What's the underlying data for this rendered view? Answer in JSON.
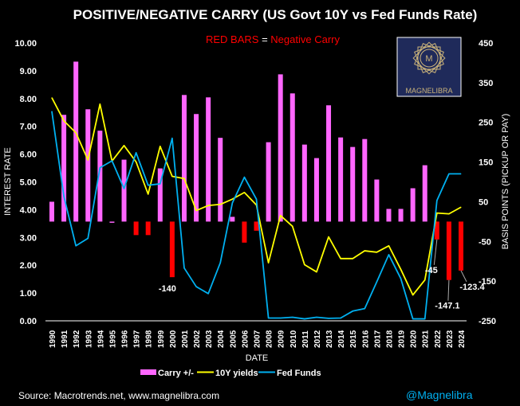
{
  "chart_data": {
    "type": "bar+line",
    "title": "POSITIVE/NEGATIVE CARRY (US Govt 10Y vs Fed Funds Rate)",
    "subtitle_red": "RED BARS",
    "subtitle_eq": " = ",
    "subtitle_neg": "Negative Carry",
    "xlabel": "DATE",
    "ylabel_left": "INTEREST RATE",
    "ylabel_right": "BASIS POINTS (PICKUP OR PAY)",
    "ylim_left": [
      0,
      10
    ],
    "ylim_right": [
      -250,
      450
    ],
    "left_ticks": [
      "0.00",
      "1.00",
      "2.00",
      "3.00",
      "4.00",
      "5.00",
      "6.00",
      "7.00",
      "8.00",
      "9.00",
      "10.00"
    ],
    "right_ticks": [
      "-250",
      "-150",
      "-50",
      "50",
      "150",
      "250",
      "350",
      "450"
    ],
    "categories": [
      "1990",
      "1991",
      "1992",
      "1993",
      "1994",
      "1995",
      "1996",
      "1997",
      "1998",
      "1999",
      "2000",
      "2001",
      "2002",
      "2003",
      "2004",
      "2005",
      "2006",
      "2007",
      "2008",
      "2009",
      "2010",
      "2011",
      "2012",
      "2013",
      "2014",
      "2015",
      "2016",
      "2017",
      "2018",
      "2019",
      "2020",
      "2021",
      "2022",
      "2023",
      "2024"
    ],
    "series": [
      {
        "name": "Carry +/-",
        "kind": "bar",
        "axis": "right",
        "color": "#ff66ff",
        "negative_color": "#ff0000",
        "values": [
          50,
          269,
          403,
          283,
          229,
          -3,
          156,
          -34,
          -34,
          134,
          -140,
          319,
          271,
          313,
          211,
          12,
          -53,
          -23,
          200,
          371,
          323,
          194,
          160,
          293,
          212,
          188,
          208,
          106,
          32,
          32,
          84,
          142,
          -45,
          -147.1,
          -123.4
        ]
      },
      {
        "name": "10Y yields",
        "kind": "line",
        "axis": "left",
        "color": "#ffff00",
        "values": [
          8.03,
          7.2,
          6.77,
          5.79,
          7.8,
          5.75,
          6.31,
          5.72,
          4.56,
          6.28,
          5.2,
          5.12,
          3.97,
          4.15,
          4.19,
          4.38,
          4.62,
          4.17,
          2.09,
          3.79,
          3.4,
          2.02,
          1.76,
          3.02,
          2.24,
          2.24,
          2.52,
          2.47,
          2.7,
          1.85,
          0.93,
          1.47,
          3.88,
          3.85,
          4.09
        ]
      },
      {
        "name": "Fed Funds",
        "kind": "line",
        "axis": "left",
        "color": "#00b0f0",
        "values": [
          7.54,
          4.48,
          2.7,
          2.97,
          5.51,
          5.76,
          4.76,
          6.05,
          4.88,
          4.93,
          6.57,
          1.9,
          1.23,
          0.98,
          2.09,
          4.24,
          5.17,
          4.38,
          0.1,
          0.1,
          0.13,
          0.07,
          0.13,
          0.09,
          0.1,
          0.35,
          0.44,
          1.4,
          2.38,
          1.52,
          0.07,
          0.07,
          4.33,
          5.29,
          5.29
        ]
      }
    ],
    "bar_colors_override": {
      "1995": "#ff66ff"
    },
    "annotations": [
      {
        "year": "2000",
        "text": "-140"
      },
      {
        "year": "2022",
        "text": "-45"
      },
      {
        "year": "2023",
        "text": "-147.1"
      },
      {
        "year": "2024",
        "text": "-123.4"
      }
    ],
    "legend": [
      "Carry +/-",
      "10Y yields",
      "Fed Funds"
    ],
    "legend_position": "bottom",
    "grid": false
  },
  "logo_text": "MAGNELIBRA",
  "footer": {
    "source": "Source: Macrotrends.net, www.magnelibra.com",
    "handle": "@Magnelibra"
  }
}
